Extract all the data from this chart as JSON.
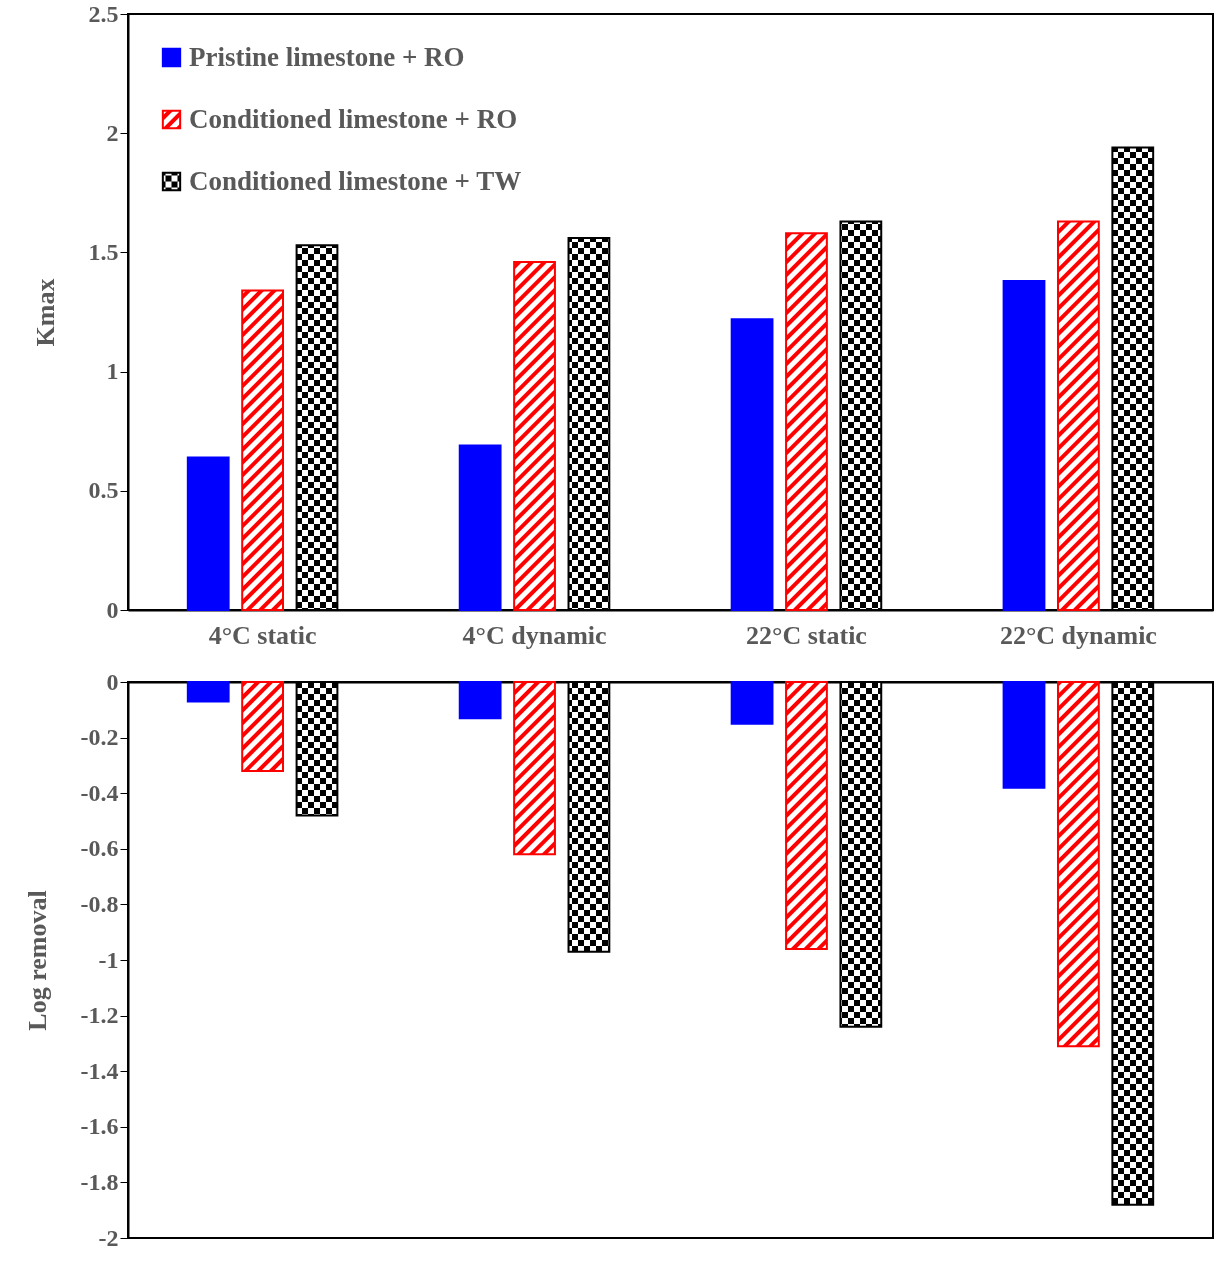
{
  "chart_data": [
    {
      "type": "bar",
      "ylabel": "Kmax",
      "categories": [
        "4°C static",
        "4°C dynamic",
        "22°C static",
        "22°C dynamic"
      ],
      "ylim": [
        0,
        2.5
      ],
      "yticks": [
        0,
        0.5,
        1,
        1.5,
        2,
        2.5
      ],
      "grid": false,
      "legend": "top left",
      "series": [
        {
          "name": "Pristine limestone + RO",
          "color": "#0000ff",
          "values": [
            0.64,
            0.69,
            1.22,
            1.38
          ]
        },
        {
          "name": "Conditioned limestone + RO",
          "color": "#ff0000",
          "values": [
            1.34,
            1.46,
            1.58,
            1.63
          ]
        },
        {
          "name": "Conditioned limestone + TW",
          "color": "#000000",
          "values": [
            1.53,
            1.56,
            1.63,
            1.94
          ]
        }
      ]
    },
    {
      "type": "bar",
      "ylabel": "Log removal",
      "categories": [
        null,
        null,
        null,
        null
      ],
      "ylim": [
        -2,
        0
      ],
      "yticks": [
        0,
        -0.2,
        -0.4,
        -0.6,
        -0.8,
        -1,
        -1.2,
        -1.4,
        -1.6,
        -1.8,
        -2
      ],
      "grid": false,
      "tick_labels": "y",
      "series": [
        {
          "color": "#0000ff",
          "values": [
            -0.07,
            -0.13,
            -0.15,
            -0.38
          ]
        },
        {
          "color": "#ff0000",
          "values": [
            -0.32,
            -0.62,
            -0.96,
            -1.31
          ]
        },
        {
          "color": "#000000",
          "values": [
            -0.48,
            -0.97,
            -1.24,
            -1.88
          ]
        }
      ]
    }
  ]
}
